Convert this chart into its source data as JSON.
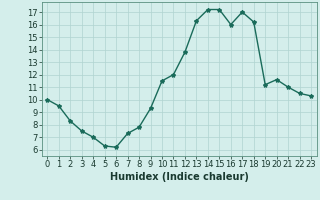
{
  "x": [
    0,
    1,
    2,
    3,
    4,
    5,
    6,
    7,
    8,
    9,
    10,
    11,
    12,
    13,
    14,
    15,
    16,
    17,
    18,
    19,
    20,
    21,
    22,
    23
  ],
  "y": [
    10.0,
    9.5,
    8.3,
    7.5,
    7.0,
    6.3,
    6.2,
    7.3,
    7.8,
    9.3,
    11.5,
    12.0,
    13.8,
    16.3,
    17.2,
    17.2,
    16.0,
    17.0,
    16.2,
    11.2,
    11.6,
    11.0,
    10.5,
    10.3
  ],
  "line_color": "#1a6b5a",
  "marker": "*",
  "marker_size": 3,
  "bg_color": "#d4eeeb",
  "grid_color": "#b0d4d0",
  "xlabel": "Humidex (Indice chaleur)",
  "xlim": [
    -0.5,
    23.5
  ],
  "ylim": [
    5.5,
    17.8
  ],
  "xticks": [
    0,
    1,
    2,
    3,
    4,
    5,
    6,
    7,
    8,
    9,
    10,
    11,
    12,
    13,
    14,
    15,
    16,
    17,
    18,
    19,
    20,
    21,
    22,
    23
  ],
  "yticks": [
    6,
    7,
    8,
    9,
    10,
    11,
    12,
    13,
    14,
    15,
    16,
    17
  ],
  "xlabel_fontsize": 7,
  "tick_fontsize": 6,
  "linewidth": 1.0,
  "spine_color": "#5a9080"
}
